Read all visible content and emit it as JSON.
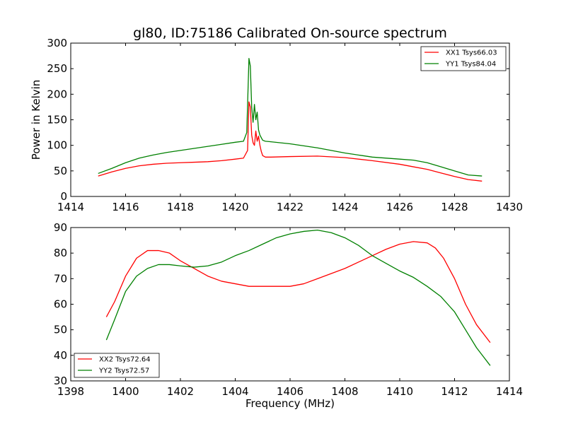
{
  "chart_data": [
    {
      "type": "line",
      "title": "gl80, ID:75186 Calibrated On-source spectrum",
      "xlabel": "",
      "ylabel": "Power in Kelvin",
      "xlim": [
        1414,
        1430
      ],
      "ylim": [
        0,
        300
      ],
      "xticks": [
        "1414",
        "1416",
        "1418",
        "1420",
        "1422",
        "1424",
        "1426",
        "1428",
        "1430"
      ],
      "yticks": [
        "0",
        "50",
        "100",
        "150",
        "200",
        "250",
        "300"
      ],
      "grid": false,
      "legend_position": "top-right",
      "series": [
        {
          "name": "XX1 Tsys66.03",
          "color": "#ff0000",
          "x": [
            1415.0,
            1415.5,
            1416.0,
            1416.5,
            1417.0,
            1417.5,
            1418.0,
            1418.5,
            1419.0,
            1419.5,
            1420.0,
            1420.3,
            1420.45,
            1420.5,
            1420.55,
            1420.6,
            1420.65,
            1420.7,
            1420.75,
            1420.8,
            1420.85,
            1420.9,
            1420.95,
            1421.0,
            1421.1,
            1421.3,
            1422.0,
            1423.0,
            1424.0,
            1425.0,
            1426.0,
            1426.5,
            1427.0,
            1427.5,
            1428.0,
            1428.5,
            1429.0
          ],
          "values": [
            40,
            48,
            55,
            60,
            63,
            65,
            66,
            67,
            68,
            70,
            73,
            75,
            90,
            185,
            175,
            120,
            105,
            100,
            128,
            108,
            118,
            100,
            88,
            80,
            77,
            77,
            78,
            79,
            76,
            70,
            63,
            58,
            53,
            46,
            39,
            33,
            30
          ]
        },
        {
          "name": "YY1 Tsys84.04",
          "color": "#008000",
          "x": [
            1415.0,
            1415.5,
            1416.0,
            1416.5,
            1417.0,
            1417.5,
            1418.0,
            1418.5,
            1419.0,
            1419.5,
            1420.0,
            1420.3,
            1420.42,
            1420.5,
            1420.55,
            1420.6,
            1420.65,
            1420.7,
            1420.75,
            1420.8,
            1420.85,
            1420.9,
            1420.95,
            1421.0,
            1421.1,
            1421.3,
            1422.0,
            1423.0,
            1424.0,
            1425.0,
            1426.0,
            1426.5,
            1427.0,
            1427.5,
            1428.0,
            1428.5,
            1429.0
          ],
          "values": [
            45,
            55,
            66,
            75,
            81,
            86,
            90,
            94,
            98,
            102,
            106,
            108,
            125,
            270,
            255,
            175,
            145,
            180,
            150,
            165,
            130,
            120,
            115,
            110,
            108,
            107,
            103,
            95,
            85,
            77,
            73,
            71,
            66,
            58,
            50,
            42,
            40
          ]
        }
      ]
    },
    {
      "type": "line",
      "title": "",
      "xlabel": "Frequency (MHz)",
      "ylabel": "",
      "xlim": [
        1398,
        1414
      ],
      "ylim": [
        30,
        90
      ],
      "xticks": [
        "1398",
        "1400",
        "1402",
        "1404",
        "1406",
        "1408",
        "1410",
        "1412",
        "1414"
      ],
      "yticks": [
        "30",
        "40",
        "50",
        "60",
        "70",
        "80",
        "90"
      ],
      "grid": false,
      "legend_position": "bottom-left",
      "series": [
        {
          "name": "XX2 Tsys72.64",
          "color": "#ff0000",
          "x": [
            1399.3,
            1399.6,
            1400.0,
            1400.4,
            1400.8,
            1401.2,
            1401.6,
            1402.0,
            1402.5,
            1403.0,
            1403.5,
            1404.0,
            1404.5,
            1405.0,
            1405.5,
            1406.0,
            1406.5,
            1407.0,
            1407.5,
            1408.0,
            1408.5,
            1409.0,
            1409.5,
            1410.0,
            1410.5,
            1411.0,
            1411.3,
            1411.6,
            1412.0,
            1412.4,
            1412.8,
            1413.3
          ],
          "values": [
            55,
            61,
            71,
            78,
            81,
            81,
            80,
            77,
            74,
            71,
            69,
            68,
            67,
            67,
            67,
            67,
            68,
            70,
            72,
            74,
            76.5,
            79,
            81.5,
            83.5,
            84.5,
            84,
            82,
            78,
            70,
            60,
            52,
            45
          ]
        },
        {
          "name": "YY2 Tsys72.57",
          "color": "#008000",
          "x": [
            1399.3,
            1399.6,
            1400.0,
            1400.4,
            1400.8,
            1401.2,
            1401.6,
            1402.0,
            1402.5,
            1403.0,
            1403.5,
            1404.0,
            1404.5,
            1405.0,
            1405.5,
            1406.0,
            1406.5,
            1407.0,
            1407.5,
            1408.0,
            1408.5,
            1409.0,
            1409.5,
            1410.0,
            1410.5,
            1411.0,
            1411.5,
            1412.0,
            1412.4,
            1412.8,
            1413.3
          ],
          "values": [
            46,
            54,
            65,
            71,
            74,
            75.5,
            75.5,
            75,
            74.5,
            75,
            76.5,
            79,
            81,
            83.5,
            86,
            87.5,
            88.5,
            89,
            88,
            86,
            83,
            79,
            76,
            73,
            70.5,
            67,
            63,
            57,
            50,
            43,
            36
          ]
        }
      ]
    }
  ]
}
